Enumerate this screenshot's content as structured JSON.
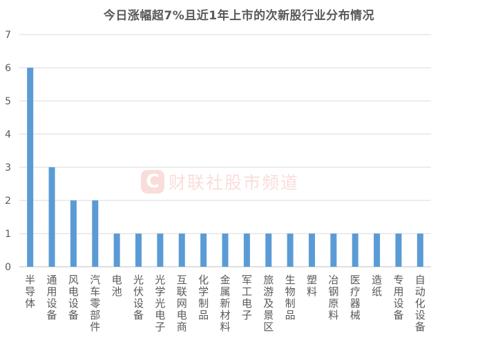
{
  "chart_data": {
    "type": "bar",
    "title": "今日涨幅超7%且近1年上市的次新股行业分布情况",
    "categories": [
      "半导体",
      "通用设备",
      "风电设备",
      "汽车零部件",
      "电池",
      "光伏设备",
      "光学光电子",
      "互联网电商",
      "化学制品",
      "金属新材料",
      "军工电子",
      "旅游及景区",
      "生物制品",
      "塑料",
      "冶钢原料",
      "医疗器械",
      "造纸",
      "专用设备",
      "自动化设备"
    ],
    "values": [
      6,
      3,
      2,
      2,
      1,
      1,
      1,
      1,
      1,
      1,
      1,
      1,
      1,
      1,
      1,
      1,
      1,
      1,
      1
    ],
    "ylim": [
      0,
      7
    ],
    "yticks": [
      0,
      1,
      2,
      3,
      4,
      5,
      6,
      7
    ],
    "xlabel": "",
    "ylabel": "",
    "grid": true,
    "legend": "none",
    "colors": {
      "bar": "#5b9bd5",
      "grid": "#d9d9d9",
      "axis": "#bfbfbf",
      "text": "#595959"
    }
  },
  "watermark": {
    "logo": "C",
    "text": "财联社股市频道"
  }
}
